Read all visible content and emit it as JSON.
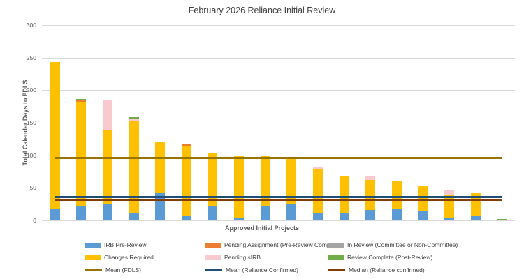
{
  "chart_data": {
    "type": "bar",
    "stacked": true,
    "title": "February 2026 Reliance Initial Review",
    "xlabel": "Approved Initial Projects",
    "ylabel": "Total Calendar Days to FDLS",
    "ylim": [
      0,
      300
    ],
    "yticks": [
      0,
      50,
      100,
      150,
      200,
      250,
      300
    ],
    "grid": true,
    "legend_position": "bottom",
    "x_category_labels": [],
    "series": {
      "irb_pre_review": {
        "name": "IRB Pre-Review",
        "color": "#5B9BD5",
        "marker": "bar"
      },
      "pending_assignment": {
        "name": "Pending Assignment (Pre-Review Complete)",
        "color": "#ED7D31",
        "marker": "bar"
      },
      "in_review": {
        "name": "In Review (Committee or Non-Committee)",
        "color": "#A5A5A5",
        "marker": "bar"
      },
      "changes_required": {
        "name": "Changes Required",
        "color": "#FFC000",
        "marker": "bar"
      },
      "pending_sirb": {
        "name": "Pending sIRB",
        "color": "#F8C9CE",
        "marker": "bar"
      },
      "review_complete": {
        "name": "Review Complete (Post-Review)",
        "color": "#70AD47",
        "marker": "bar"
      },
      "mean_fdls": {
        "name": "Mean (FDLS)",
        "color": "#997300",
        "marker": "line"
      },
      "mean_reliance": {
        "name": "Mean (Reliance Confirmed)",
        "color": "#1F4E79",
        "marker": "line"
      },
      "median_reliance": {
        "name": "Median (Reliance confirmed)",
        "color": "#833C00",
        "marker": "line"
      }
    },
    "bars": [
      {
        "segments": [
          [
            "irb_pre_review",
            18
          ],
          [
            "changes_required",
            225
          ]
        ]
      },
      {
        "segments": [
          [
            "irb_pre_review",
            21
          ],
          [
            "changes_required",
            161
          ],
          [
            "pending_assignment",
            2
          ],
          [
            "review_complete",
            2
          ]
        ]
      },
      {
        "segments": [
          [
            "irb_pre_review",
            26
          ],
          [
            "changes_required",
            112
          ],
          [
            "pending_sirb",
            46
          ]
        ]
      },
      {
        "segments": [
          [
            "irb_pre_review",
            11
          ],
          [
            "changes_required",
            141
          ],
          [
            "pending_assignment",
            1
          ],
          [
            "pending_sirb",
            4
          ],
          [
            "review_complete",
            2
          ]
        ]
      },
      {
        "segments": [
          [
            "irb_pre_review",
            43
          ],
          [
            "changes_required",
            77
          ]
        ]
      },
      {
        "segments": [
          [
            "irb_pre_review",
            6
          ],
          [
            "changes_required",
            109
          ],
          [
            "pending_assignment",
            2
          ],
          [
            "review_complete",
            1
          ]
        ]
      },
      {
        "segments": [
          [
            "irb_pre_review",
            21
          ],
          [
            "changes_required",
            82
          ]
        ]
      },
      {
        "segments": [
          [
            "irb_pre_review",
            3
          ],
          [
            "changes_required",
            97
          ]
        ]
      },
      {
        "segments": [
          [
            "irb_pre_review",
            22
          ],
          [
            "changes_required",
            78
          ]
        ]
      },
      {
        "segments": [
          [
            "irb_pre_review",
            26
          ],
          [
            "changes_required",
            71
          ]
        ]
      },
      {
        "segments": [
          [
            "irb_pre_review",
            11
          ],
          [
            "changes_required",
            68
          ],
          [
            "pending_sirb",
            2
          ]
        ]
      },
      {
        "segments": [
          [
            "irb_pre_review",
            12
          ],
          [
            "changes_required",
            57
          ]
        ]
      },
      {
        "segments": [
          [
            "irb_pre_review",
            16
          ],
          [
            "changes_required",
            46
          ],
          [
            "pending_sirb",
            6
          ]
        ]
      },
      {
        "segments": [
          [
            "irb_pre_review",
            18
          ],
          [
            "changes_required",
            42
          ]
        ]
      },
      {
        "segments": [
          [
            "irb_pre_review",
            14
          ],
          [
            "changes_required",
            40
          ]
        ]
      },
      {
        "segments": [
          [
            "irb_pre_review",
            3
          ],
          [
            "changes_required",
            37
          ],
          [
            "pending_sirb",
            6
          ]
        ]
      },
      {
        "segments": [
          [
            "irb_pre_review",
            8
          ],
          [
            "changes_required",
            35
          ]
        ]
      },
      {
        "segments": [
          [
            "review_complete",
            2
          ]
        ]
      }
    ],
    "reference_lines": [
      {
        "series": "mean_fdls",
        "value": 96,
        "thickness": 3
      },
      {
        "series": "mean_reliance",
        "value": 36,
        "thickness": 3
      },
      {
        "series": "median_reliance",
        "value": 32,
        "thickness": 3
      }
    ],
    "legend_rows": [
      [
        "irb_pre_review",
        "pending_assignment",
        "in_review"
      ],
      [
        "changes_required",
        "pending_sirb",
        "review_complete"
      ],
      [
        "mean_fdls",
        "mean_reliance",
        "median_reliance"
      ]
    ]
  },
  "style": {
    "title_color": "#404040",
    "axis_text_color": "#595959",
    "gridline_color": "#D9D9D9"
  }
}
